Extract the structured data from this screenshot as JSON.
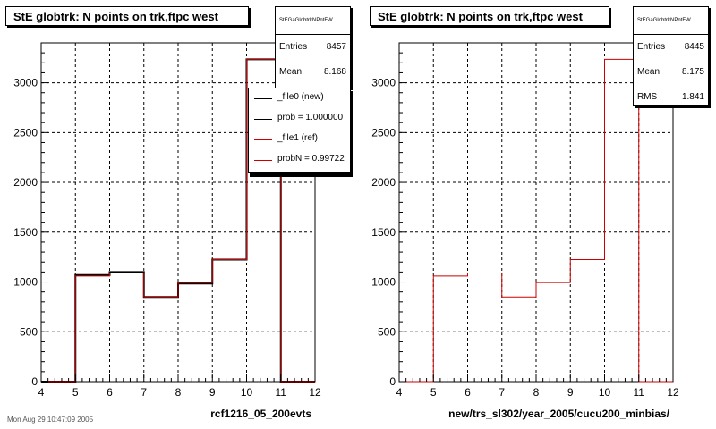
{
  "chart_data": [
    {
      "type": "bar",
      "title": "StE globtrk: N points on trk,ftpc west",
      "xlabel": "rcf1216_05_200evts",
      "ylabel": "",
      "xlim": [
        4,
        12
      ],
      "ylim": [
        0,
        3400
      ],
      "x_ticks": [
        4,
        5,
        6,
        7,
        8,
        9,
        10,
        11,
        12
      ],
      "y_ticks": [
        0,
        500,
        1000,
        1500,
        2000,
        2500,
        3000
      ],
      "grid": true,
      "bin_edges": [
        4,
        5,
        6,
        7,
        8,
        9,
        10,
        11,
        12
      ],
      "series": [
        {
          "name": "_file0 (new)",
          "color": "#000000",
          "values": [
            0,
            1070,
            1100,
            850,
            985,
            1225,
            3235,
            0
          ]
        },
        {
          "name": "_file1 (ref)",
          "color": "#cc0000",
          "values": [
            0,
            1060,
            1090,
            850,
            995,
            1225,
            3235,
            0
          ]
        }
      ],
      "stats": {
        "name": "StEGaGlobtrkNPntFW",
        "entries_label": "Entries",
        "entries": "8457",
        "mean_label": "Mean",
        "mean": "8.168"
      },
      "legend": {
        "position": "top-right",
        "entries": [
          "_file0 (new)",
          "prob = 1.000000",
          "_file1 (ref)",
          "probN = 0.99722"
        ]
      }
    },
    {
      "type": "bar",
      "title": "StE globtrk: N points on trk,ftpc west",
      "xlabel": "new/trs_sl302/year_2005/cucu200_minbias/",
      "ylabel": "",
      "xlim": [
        4,
        12
      ],
      "ylim": [
        0,
        3400
      ],
      "x_ticks": [
        4,
        5,
        6,
        7,
        8,
        9,
        10,
        11,
        12
      ],
      "y_ticks": [
        0,
        500,
        1000,
        1500,
        2000,
        2500,
        3000
      ],
      "grid": true,
      "bin_edges": [
        4,
        5,
        6,
        7,
        8,
        9,
        10,
        11,
        12
      ],
      "series": [
        {
          "name": "",
          "color": "#cc0000",
          "values": [
            0,
            1060,
            1090,
            850,
            995,
            1225,
            3235,
            0
          ]
        }
      ],
      "stats": {
        "name": "StEGaGlobtrkNPntFW",
        "entries_label": "Entries",
        "entries": "8445",
        "mean_label": "Mean",
        "mean": "8.175",
        "rms_label": "RMS",
        "rms": "1.841"
      }
    }
  ],
  "footer": "Mon Aug 29 10:47:09 2005"
}
